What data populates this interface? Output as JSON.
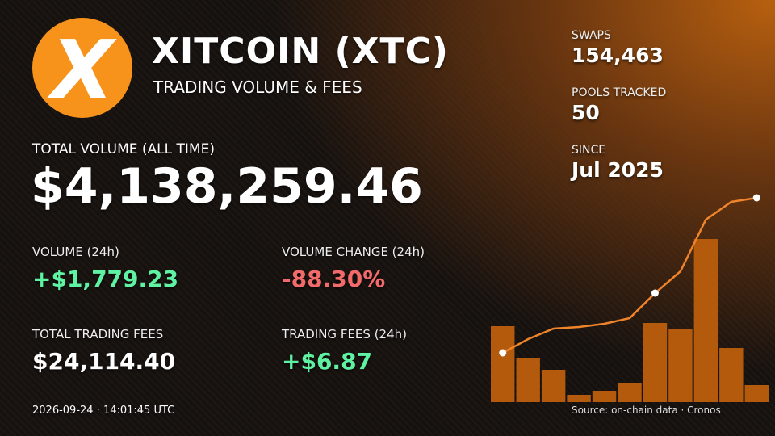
{
  "header": {
    "logo": "X",
    "title": "XITCOIN (XTC)",
    "subtitle": "TRADING VOLUME & FEES"
  },
  "total_volume": {
    "label": "TOTAL VOLUME (ALL TIME)",
    "value": "$4,138,259.46"
  },
  "stats": [
    {
      "label": "VOLUME (24h)",
      "value": "+$1,779.23",
      "tone": "up"
    },
    {
      "label": "VOLUME CHANGE (24h)",
      "value": "-88.30%",
      "tone": "down"
    },
    {
      "label": "TOTAL TRADING FEES",
      "value": "$24,114.40",
      "tone": "plain"
    },
    {
      "label": "TRADING FEES (24h)",
      "value": "+$6.87",
      "tone": "up"
    }
  ],
  "side": [
    {
      "label": "SWAPS",
      "value": "154,463"
    },
    {
      "label": "POOLS TRACKED",
      "value": "50"
    },
    {
      "label": "SINCE",
      "value": "Jul 2025"
    }
  ],
  "timestamp": "2026-09-24 · 14:01:45 UTC",
  "source": "Source: on-chain data · Cronos",
  "chart_data": {
    "type": "bar_line",
    "ylim": [
      0,
      260
    ],
    "series": [
      {
        "type": "bar",
        "color": "#b35a0c",
        "values": [
          94,
          54,
          40,
          9,
          14,
          24,
          98,
          90,
          202,
          67,
          21
        ]
      },
      {
        "type": "line",
        "color": "#f0842a",
        "values": [
          61,
          78,
          91,
          93,
          97,
          104,
          135,
          162,
          226,
          248,
          253
        ],
        "markers": [
          0,
          6,
          10
        ]
      }
    ]
  }
}
